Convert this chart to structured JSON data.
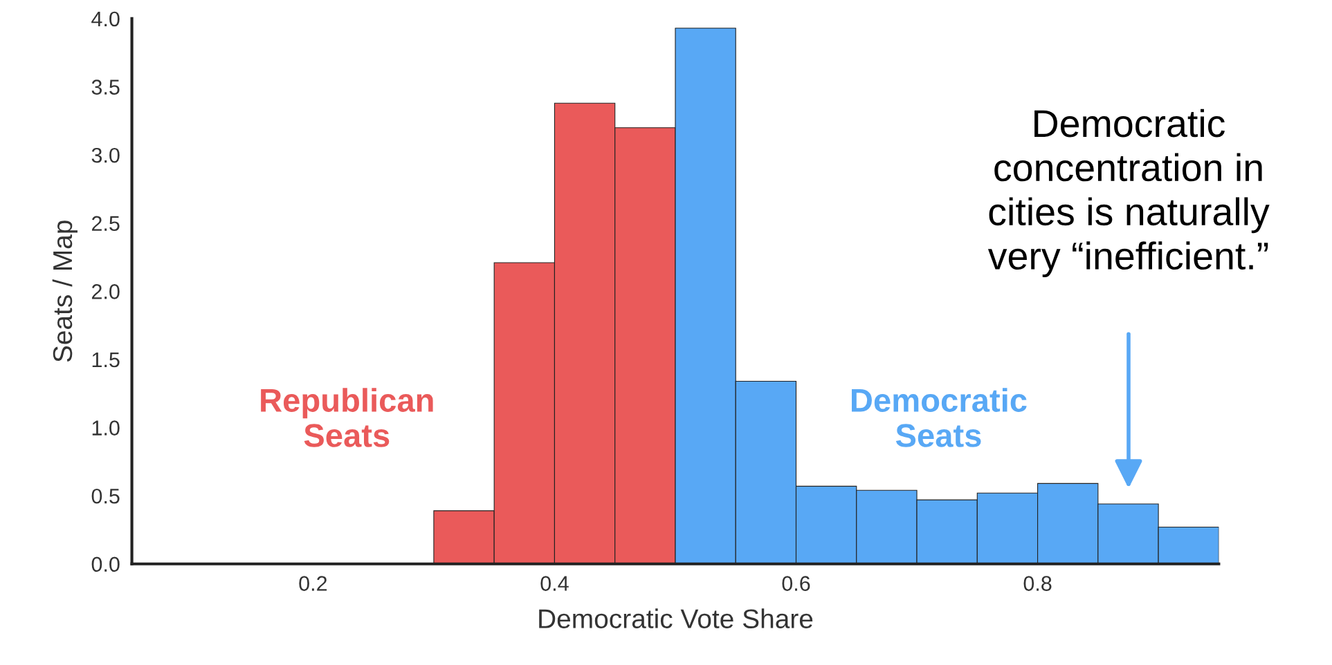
{
  "chart_data": {
    "type": "histogram",
    "xlabel": "Democratic Vote Share",
    "ylabel": "Seats / Map",
    "bins": [
      0.3,
      0.35,
      0.4,
      0.45,
      0.5,
      0.55,
      0.6,
      0.65,
      0.7,
      0.75,
      0.8,
      0.85,
      0.9,
      0.95
    ],
    "series": [
      {
        "name": "Republican Seats",
        "color": "#ea5a5a",
        "values": [
          0.39,
          2.21,
          3.38,
          3.2,
          null,
          null,
          null,
          null,
          null,
          null,
          null,
          null,
          null
        ]
      },
      {
        "name": "Democratic Seats",
        "color": "#58a8f5",
        "values": [
          null,
          null,
          null,
          null,
          3.93,
          1.34,
          0.57,
          0.54,
          0.47,
          0.52,
          0.59,
          0.44,
          0.27
        ]
      }
    ],
    "xlim": [
      0.05,
      0.95
    ],
    "xticks": [
      0.2,
      0.4,
      0.6,
      0.8
    ],
    "ylim": [
      0,
      4.0
    ],
    "yticks": [
      {
        "value": 0,
        "label": "0.0"
      },
      0.5,
      {
        "value": 1,
        "label": "1.0"
      },
      1.5,
      {
        "value": 2,
        "label": "2.0"
      },
      2.5,
      {
        "value": 3,
        "label": "3.0"
      },
      3.5,
      {
        "value": 4,
        "label": "4.0"
      }
    ],
    "annotations": [
      "Democratic\nconcentration in\ncities is naturally\nvery “inefficient.”"
    ],
    "grid": false,
    "legend": false
  }
}
